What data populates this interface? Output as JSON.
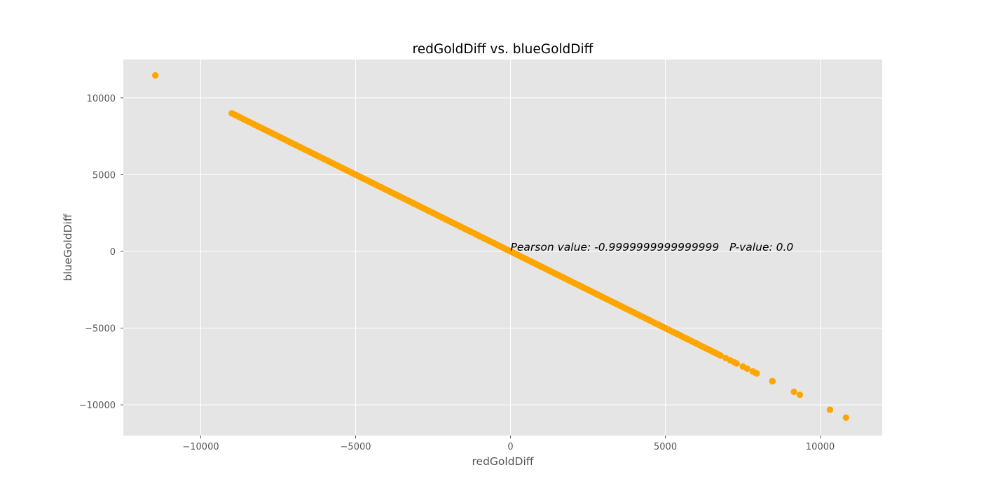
{
  "chart_data": {
    "type": "scatter",
    "title": "redGoldDiff vs. blueGoldDiff",
    "xlabel": "redGoldDiff",
    "ylabel": "blueGoldDiff",
    "xlim": [
      -12500,
      12000
    ],
    "ylim": [
      -12000,
      12500
    ],
    "xticks": [
      -10000,
      -5000,
      0,
      5000,
      10000
    ],
    "yticks": [
      -10000,
      -5000,
      0,
      5000,
      10000
    ],
    "xtick_labels": [
      "−10000",
      "−5000",
      "0",
      "5000",
      "10000"
    ],
    "ytick_labels": [
      "−10000",
      "−5000",
      "0",
      "5000",
      "10000"
    ],
    "grid": true,
    "background": "#e5e5e5",
    "marker_color": "#ffa500",
    "annotation": {
      "text": "Pearson value: -0.9999999999999999   P-value: 0.0",
      "x": 0,
      "y": 0
    },
    "points": [
      {
        "x": -11467,
        "y": 11467
      },
      {
        "x": 10830,
        "y": -10830
      },
      {
        "x": 10313,
        "y": -10313
      },
      {
        "x": 9340,
        "y": -9340
      },
      {
        "x": 9150,
        "y": -9150
      },
      {
        "x": 8460,
        "y": -8460
      },
      {
        "x": 8450,
        "y": -8450
      },
      {
        "x": 7950,
        "y": -7950
      },
      {
        "x": 7900,
        "y": -7900
      },
      {
        "x": 7820,
        "y": -7820
      },
      {
        "x": 7640,
        "y": -7640
      },
      {
        "x": 7500,
        "y": -7500
      },
      {
        "x": 7300,
        "y": -7300
      },
      {
        "x": 7220,
        "y": -7220
      },
      {
        "x": 7100,
        "y": -7100
      },
      {
        "x": 6950,
        "y": -6950
      }
    ],
    "dense_range": {
      "x_from": -9000,
      "x_to": 6800,
      "step": 60
    }
  }
}
